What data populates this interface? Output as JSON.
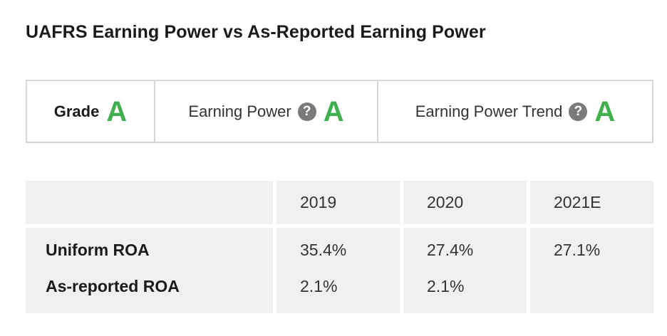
{
  "title": "UAFRS Earning Power vs As-Reported Earning Power",
  "grades": {
    "overall": {
      "label": "Grade",
      "value": "A"
    },
    "earning_power": {
      "label": "Earning Power",
      "help": "?",
      "value": "A"
    },
    "trend": {
      "label": "Earning Power Trend",
      "help": "?",
      "value": "A"
    }
  },
  "table": {
    "columns": [
      "",
      "2019",
      "2020",
      "2021E"
    ],
    "rows": [
      {
        "label": "Uniform ROA",
        "values": [
          "35.4%",
          "27.4%",
          "27.1%"
        ]
      },
      {
        "label": "As-reported ROA",
        "values": [
          "2.1%",
          "2.1%",
          ""
        ]
      }
    ]
  },
  "colors": {
    "grade_green": "#3fb04d",
    "table_background": "#f0f0f0",
    "border": "#d6d6d6",
    "help_icon": "#7a7a7a"
  },
  "icons": {
    "help": "question-circle-icon"
  }
}
